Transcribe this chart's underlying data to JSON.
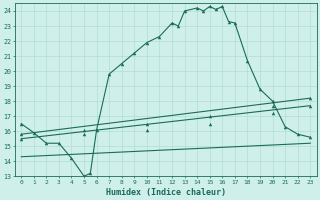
{
  "xlabel": "Humidex (Indice chaleur)",
  "bg_color": "#cff0ea",
  "line_color": "#1a6b5a",
  "grid_color": "#b0ddd5",
  "xlim": [
    -0.5,
    23.5
  ],
  "ylim": [
    13,
    24.5
  ],
  "xticks": [
    0,
    1,
    2,
    3,
    4,
    5,
    6,
    7,
    8,
    9,
    10,
    11,
    12,
    13,
    14,
    15,
    16,
    17,
    18,
    19,
    20,
    21,
    22,
    23
  ],
  "yticks": [
    13,
    14,
    15,
    16,
    17,
    18,
    19,
    20,
    21,
    22,
    23,
    24
  ],
  "curve1_x": [
    0,
    1,
    2,
    3,
    4,
    5,
    5.5,
    6,
    7,
    8,
    9,
    10,
    11,
    12,
    12.5,
    13,
    14,
    14.5,
    15,
    15.5,
    16,
    16.5,
    17,
    18,
    19,
    20,
    21,
    22,
    23
  ],
  "curve1_y": [
    16.5,
    15.9,
    15.2,
    15.2,
    14.2,
    13.0,
    13.2,
    16.1,
    19.8,
    20.5,
    21.2,
    21.9,
    22.3,
    23.2,
    23.0,
    24.0,
    24.2,
    24.0,
    24.3,
    24.1,
    24.3,
    23.3,
    23.2,
    20.7,
    18.8,
    18.0,
    16.3,
    15.8,
    15.6
  ],
  "curve2_x": [
    0,
    23
  ],
  "curve2_y": [
    15.8,
    18.2
  ],
  "curve3_x": [
    0,
    23
  ],
  "curve3_y": [
    15.5,
    17.7
  ],
  "curve4_x": [
    0,
    23
  ],
  "curve4_y": [
    14.3,
    15.2
  ],
  "curve2_markers_x": [
    0,
    5,
    10,
    15,
    20,
    23
  ],
  "curve2_markers_y": [
    15.8,
    16.1,
    16.5,
    17.0,
    17.7,
    18.2
  ],
  "curve3_markers_x": [
    0,
    5,
    10,
    15,
    20,
    23
  ],
  "curve3_markers_y": [
    15.5,
    15.8,
    16.1,
    16.5,
    17.2,
    17.7
  ]
}
